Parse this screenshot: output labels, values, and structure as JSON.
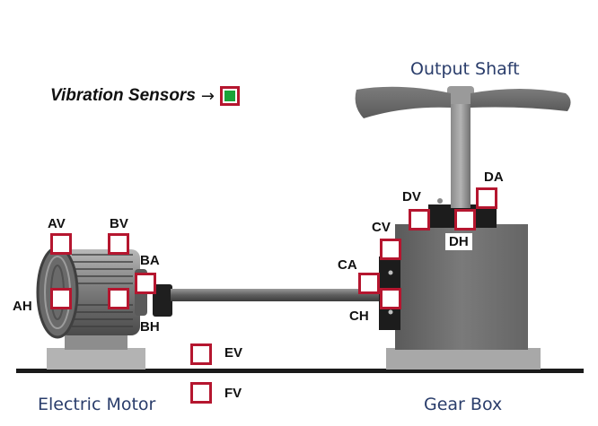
{
  "legend": {
    "label": "Vibration Sensors",
    "arrow": "→",
    "sensor_color": "#1aa33a"
  },
  "captions": {
    "output_shaft": "Output Shaft",
    "electric_motor": "Electric Motor",
    "gear_box": "Gear Box"
  },
  "sensors": {
    "AV": "AV",
    "BV": "BV",
    "BA": "BA",
    "AH": "AH",
    "BH": "BH",
    "EV": "EV",
    "FV": "FV",
    "CA": "CA",
    "CV": "CV",
    "CH": "CH",
    "DV": "DV",
    "DA": "DA",
    "DH": "DH"
  },
  "colors": {
    "sensor_border": "#b5162f",
    "caption_text": "#2a3d6b",
    "machine_gray": "#6e6e6e",
    "ground_line": "#1a1a1a"
  }
}
